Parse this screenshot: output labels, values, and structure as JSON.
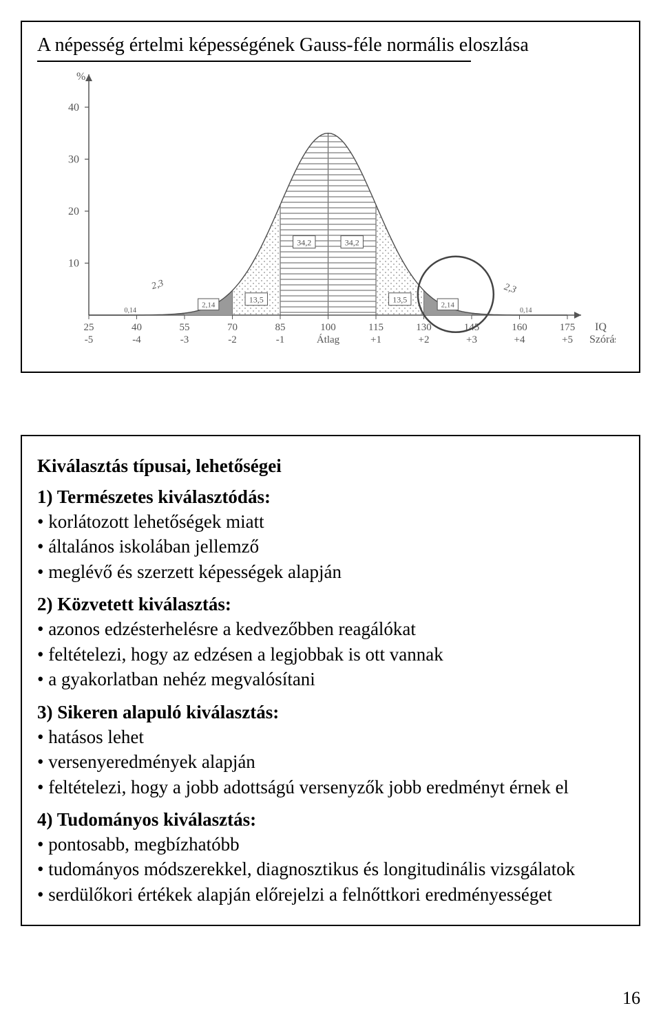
{
  "page_number": "16",
  "slide1": {
    "title": "A népesség értelmi képességének Gauss-féle normális eloszlása",
    "chart": {
      "type": "bell-curve",
      "y_label": "%",
      "y_ticks": [
        "10",
        "20",
        "30",
        "40"
      ],
      "x_label_1": "IQ",
      "x_label_2": "Szórás",
      "x_iq": [
        "25",
        "40",
        "55",
        "70",
        "85",
        "100",
        "115",
        "130",
        "145",
        "160",
        "175"
      ],
      "x_sd": [
        "-5",
        "-4",
        "-3",
        "-2",
        "-1",
        "Átlag",
        "+1",
        "+2",
        "+3",
        "+4",
        "+5"
      ],
      "region_labels": {
        "left_014": "0,14",
        "left_214": "2,14",
        "left_135": "13,5",
        "left_342": "34,2",
        "right_342": "34,2",
        "right_135": "13,5",
        "right_214": "2,14",
        "right_014": "0,14",
        "tail_left_23": "2,3",
        "tail_right_23": "2,3"
      },
      "colors": {
        "axis": "#555555",
        "curve": "#4d4d4d",
        "box": "#555555",
        "grid": "#bfbfbf",
        "fill_tail": "#9a9a9a",
        "fill_tail2": "#7d7d7d",
        "hatch": "#808080",
        "dotfill": "#8a8a8a",
        "circle": "#444444",
        "text": "#555555"
      },
      "ylim": [
        0,
        45
      ],
      "line_width": 1.4
    }
  },
  "slide2": {
    "heading": "Kiválasztás típusai, lehetőségei",
    "g1_head": "1) Természetes kiválasztódás:",
    "g1": [
      "korlátozott lehetőségek miatt",
      "általános iskolában jellemző",
      "meglévő és szerzett képességek alapján"
    ],
    "g2_head": "2) Közvetett kiválasztás:",
    "g2": [
      "azonos edzésterhelésre a kedvezőbben reagálókat",
      "feltételezi, hogy az edzésen a legjobbak is ott vannak",
      "a gyakorlatban nehéz megvalósítani"
    ],
    "g3_head": "3) Sikeren alapuló kiválasztás:",
    "g3": [
      "hatásos lehet",
      "versenyeredmények alapján",
      "feltételezi, hogy a jobb adottságú versenyzők jobb eredményt érnek el"
    ],
    "g4_head": "4) Tudományos kiválasztás:",
    "g4": [
      "pontosabb, megbízhatóbb",
      "tudományos módszerekkel, diagnosztikus és longitudinális vizsgálatok",
      "serdülőkori értékek alapján előrejelzi a felnőttkori eredményességet"
    ]
  }
}
